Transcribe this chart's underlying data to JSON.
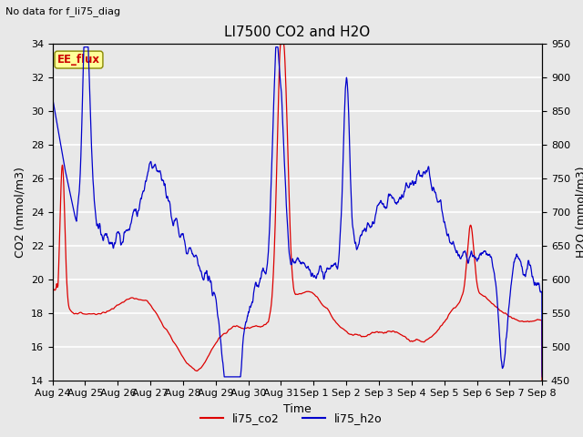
{
  "title": "LI7500 CO2 and H2O",
  "subtitle": "No data for f_li75_diag",
  "xlabel": "Time",
  "ylabel_left": "CO2 (mmol/m3)",
  "ylabel_right": "H2O (mmol/m3)",
  "ylim_left": [
    14,
    34
  ],
  "ylim_right": [
    450,
    950
  ],
  "yticks_left": [
    14,
    16,
    18,
    20,
    22,
    24,
    26,
    28,
    30,
    32,
    34
  ],
  "yticks_right": [
    450,
    500,
    550,
    600,
    650,
    700,
    750,
    800,
    850,
    900,
    950
  ],
  "xtick_labels": [
    "Aug 24",
    "Aug 25",
    "Aug 26",
    "Aug 27",
    "Aug 28",
    "Aug 29",
    "Aug 30",
    "Aug 31",
    "Sep 1",
    "Sep 2",
    "Sep 3",
    "Sep 4",
    "Sep 5",
    "Sep 6",
    "Sep 7",
    "Sep 8"
  ],
  "annotation_label": "EE_flux",
  "background_color": "#e8e8e8",
  "plot_background": "#e8e8e8",
  "grid_color": "#ffffff",
  "co2_color": "#dd0000",
  "h2o_color": "#0000cc",
  "legend_co2": "li75_co2",
  "legend_h2o": "li75_h2o"
}
